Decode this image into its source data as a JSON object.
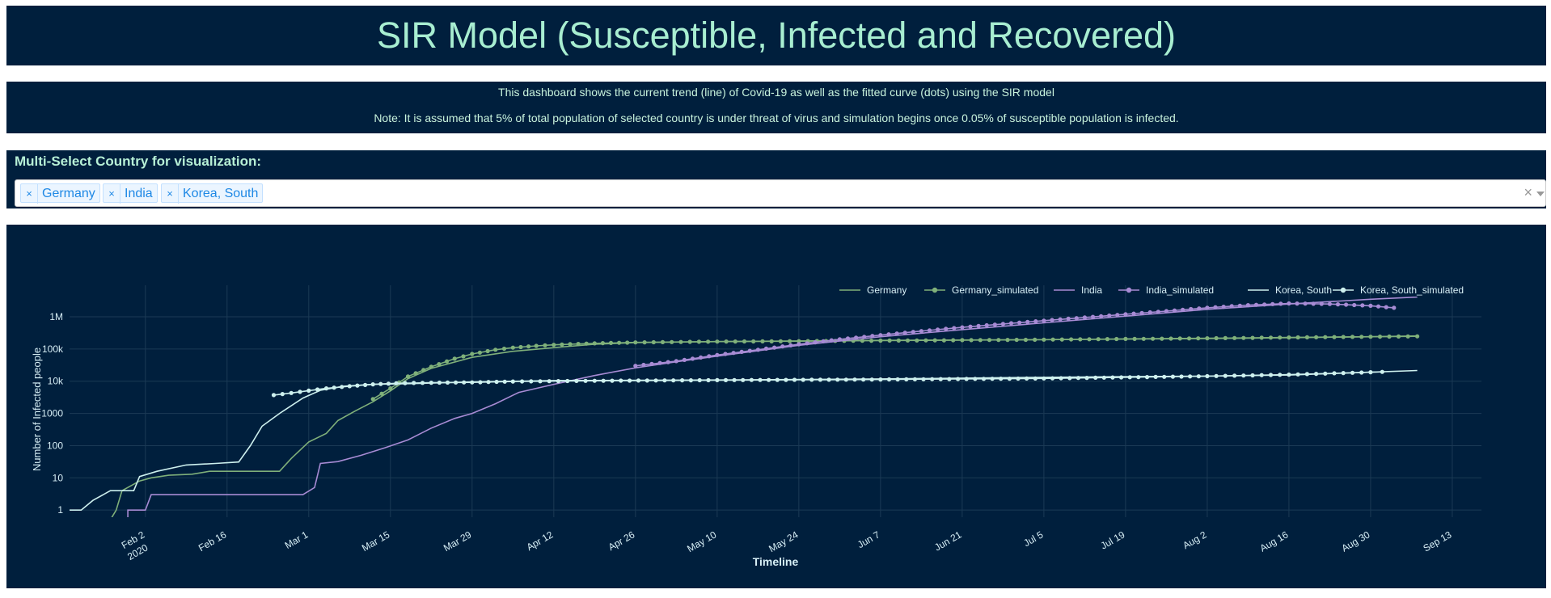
{
  "header": {
    "title": "SIR Model (Susceptible, Infected and Recovered)"
  },
  "description": {
    "line1": "This dashboard shows the current trend (line) of Covid-19 as well as the fitted curve (dots) using the SIR model",
    "line2": "Note: It is assumed that 5% of total population of selected country is under threat of virus and simulation begins once 0.05% of susceptible population is infected."
  },
  "selector": {
    "label": "Multi-Select Country for visualization:",
    "chips": [
      "Germany",
      "India",
      "Korea, South"
    ],
    "remove_glyph": "×",
    "clear_glyph": "×"
  },
  "chart_data": {
    "type": "line",
    "xlabel": "Timeline",
    "ylabel": "Number of Infected people",
    "y_scale": "log",
    "ylim": [
      0.6,
      3000000
    ],
    "xlim": [
      "2020-01-20",
      "2020-09-18"
    ],
    "x_ticks": [
      "2020-02-02",
      "2020-02-16",
      "2020-03-01",
      "2020-03-15",
      "2020-03-29",
      "2020-04-12",
      "2020-04-26",
      "2020-05-10",
      "2020-05-24",
      "2020-06-07",
      "2020-06-21",
      "2020-07-05",
      "2020-07-19",
      "2020-08-02",
      "2020-08-16",
      "2020-08-30",
      "2020-09-13"
    ],
    "x_tick_labels": [
      "Feb 2",
      "Feb 16",
      "Mar 1",
      "Mar 15",
      "Mar 29",
      "Apr 12",
      "Apr 26",
      "May 10",
      "May 24",
      "Jun 7",
      "Jun 21",
      "Jul 5",
      "Jul 19",
      "Aug 2",
      "Aug 16",
      "Aug 30",
      "Sep 13"
    ],
    "x_tick_sublabel": "2020",
    "y_ticks": [
      1,
      10,
      100,
      1000,
      10000,
      100000,
      1000000
    ],
    "y_tick_labels": [
      "1",
      "10",
      "100",
      "1000",
      "10k",
      "100k",
      "1M"
    ],
    "grid": true,
    "legend_position": "top-right",
    "series": [
      {
        "name": "Germany",
        "mode": "line",
        "color": "#7fb07a",
        "points": [
          [
            "2020-01-27",
            0.5
          ],
          [
            "2020-01-28",
            1
          ],
          [
            "2020-01-29",
            4
          ],
          [
            "2020-02-01",
            8
          ],
          [
            "2020-02-03",
            10
          ],
          [
            "2020-02-06",
            12
          ],
          [
            "2020-02-10",
            13
          ],
          [
            "2020-02-13",
            16
          ],
          [
            "2020-02-25",
            16
          ],
          [
            "2020-02-27",
            40
          ],
          [
            "2020-03-01",
            130
          ],
          [
            "2020-03-04",
            240
          ],
          [
            "2020-03-06",
            600
          ],
          [
            "2020-03-09",
            1200
          ],
          [
            "2020-03-12",
            2300
          ],
          [
            "2020-03-15",
            5000
          ],
          [
            "2020-03-18",
            12000
          ],
          [
            "2020-03-22",
            25000
          ],
          [
            "2020-03-29",
            55000
          ],
          [
            "2020-04-05",
            85000
          ],
          [
            "2020-04-12",
            110000
          ],
          [
            "2020-04-19",
            140000
          ],
          [
            "2020-04-26",
            158000
          ],
          [
            "2020-05-10",
            170000
          ],
          [
            "2020-06-07",
            185000
          ],
          [
            "2020-07-05",
            195000
          ],
          [
            "2020-08-02",
            210000
          ],
          [
            "2020-08-30",
            240000
          ],
          [
            "2020-09-07",
            255000
          ]
        ]
      },
      {
        "name": "Germany_simulated",
        "mode": "dots",
        "color": "#7fb07a",
        "points": [
          [
            "2020-03-12",
            2800
          ],
          [
            "2020-03-15",
            6000
          ],
          [
            "2020-03-18",
            14000
          ],
          [
            "2020-03-22",
            28000
          ],
          [
            "2020-03-26",
            50000
          ],
          [
            "2020-03-29",
            70000
          ],
          [
            "2020-04-02",
            95000
          ],
          [
            "2020-04-05",
            110000
          ],
          [
            "2020-04-09",
            125000
          ],
          [
            "2020-04-12",
            135000
          ],
          [
            "2020-04-19",
            150000
          ],
          [
            "2020-04-26",
            160000
          ],
          [
            "2020-05-10",
            170000
          ],
          [
            "2020-05-24",
            175000
          ],
          [
            "2020-06-07",
            182000
          ],
          [
            "2020-06-21",
            188000
          ],
          [
            "2020-07-05",
            195000
          ],
          [
            "2020-07-19",
            205000
          ],
          [
            "2020-08-02",
            215000
          ],
          [
            "2020-08-16",
            228000
          ],
          [
            "2020-08-30",
            240000
          ],
          [
            "2020-09-07",
            248000
          ]
        ]
      },
      {
        "name": "India",
        "mode": "line",
        "color": "#a78bd4",
        "points": [
          [
            "2020-01-30",
            0.5
          ],
          [
            "2020-01-30",
            1
          ],
          [
            "2020-02-02",
            1
          ],
          [
            "2020-02-03",
            3
          ],
          [
            "2020-02-06",
            3
          ],
          [
            "2020-02-29",
            3
          ],
          [
            "2020-03-02",
            5
          ],
          [
            "2020-03-03",
            28
          ],
          [
            "2020-03-06",
            32
          ],
          [
            "2020-03-10",
            50
          ],
          [
            "2020-03-14",
            85
          ],
          [
            "2020-03-18",
            150
          ],
          [
            "2020-03-22",
            350
          ],
          [
            "2020-03-26",
            700
          ],
          [
            "2020-03-29",
            1000
          ],
          [
            "2020-04-02",
            2000
          ],
          [
            "2020-04-06",
            4500
          ],
          [
            "2020-04-12",
            8000
          ],
          [
            "2020-04-19",
            15000
          ],
          [
            "2020-04-26",
            26000
          ],
          [
            "2020-05-03",
            40000
          ],
          [
            "2020-05-10",
            60000
          ],
          [
            "2020-05-24",
            130000
          ],
          [
            "2020-06-07",
            240000
          ],
          [
            "2020-06-21",
            400000
          ],
          [
            "2020-07-05",
            650000
          ],
          [
            "2020-07-19",
            1050000
          ],
          [
            "2020-08-02",
            1700000
          ],
          [
            "2020-08-16",
            2500000
          ],
          [
            "2020-08-30",
            3500000
          ],
          [
            "2020-09-07",
            4100000
          ]
        ]
      },
      {
        "name": "India_simulated",
        "mode": "dots",
        "color": "#a78bd4",
        "points": [
          [
            "2020-04-26",
            30000
          ],
          [
            "2020-05-03",
            42000
          ],
          [
            "2020-05-10",
            65000
          ],
          [
            "2020-05-17",
            95000
          ],
          [
            "2020-05-24",
            140000
          ],
          [
            "2020-05-31",
            200000
          ],
          [
            "2020-06-07",
            270000
          ],
          [
            "2020-06-14",
            360000
          ],
          [
            "2020-06-21",
            470000
          ],
          [
            "2020-06-28",
            600000
          ],
          [
            "2020-07-05",
            760000
          ],
          [
            "2020-07-12",
            950000
          ],
          [
            "2020-07-19",
            1200000
          ],
          [
            "2020-07-26",
            1500000
          ],
          [
            "2020-08-02",
            1900000
          ],
          [
            "2020-08-09",
            2300000
          ],
          [
            "2020-08-16",
            2600000
          ],
          [
            "2020-08-23",
            2500000
          ],
          [
            "2020-08-30",
            2200000
          ],
          [
            "2020-09-03",
            1900000
          ]
        ]
      },
      {
        "name": "Korea, South",
        "mode": "line",
        "color": "#cdf0ee",
        "points": [
          [
            "2020-01-20",
            1
          ],
          [
            "2020-01-22",
            1
          ],
          [
            "2020-01-24",
            2
          ],
          [
            "2020-01-27",
            4
          ],
          [
            "2020-01-31",
            4
          ],
          [
            "2020-02-01",
            11
          ],
          [
            "2020-02-04",
            16
          ],
          [
            "2020-02-09",
            25
          ],
          [
            "2020-02-14",
            28
          ],
          [
            "2020-02-18",
            31
          ],
          [
            "2020-02-20",
            100
          ],
          [
            "2020-02-22",
            400
          ],
          [
            "2020-02-25",
            1000
          ],
          [
            "2020-02-29",
            3000
          ],
          [
            "2020-03-03",
            5200
          ],
          [
            "2020-03-07",
            7000
          ],
          [
            "2020-03-12",
            8000
          ],
          [
            "2020-03-20",
            8500
          ],
          [
            "2020-03-29",
            9500
          ],
          [
            "2020-04-12",
            10500
          ],
          [
            "2020-05-10",
            10900
          ],
          [
            "2020-06-07",
            11800
          ],
          [
            "2020-07-05",
            13200
          ],
          [
            "2020-08-02",
            14400
          ],
          [
            "2020-08-16",
            15500
          ],
          [
            "2020-08-30",
            19000
          ],
          [
            "2020-09-07",
            21500
          ]
        ]
      },
      {
        "name": "Korea, South_simulated",
        "mode": "dots",
        "color": "#cdf0ee",
        "points": [
          [
            "2020-02-24",
            3700
          ],
          [
            "2020-02-27",
            4300
          ],
          [
            "2020-03-01",
            5100
          ],
          [
            "2020-03-04",
            6000
          ],
          [
            "2020-03-08",
            7000
          ],
          [
            "2020-03-12",
            8000
          ],
          [
            "2020-03-16",
            8600
          ],
          [
            "2020-03-22",
            9000
          ],
          [
            "2020-03-29",
            9200
          ],
          [
            "2020-04-05",
            9800
          ],
          [
            "2020-04-19",
            10300
          ],
          [
            "2020-05-10",
            10800
          ],
          [
            "2020-06-07",
            11300
          ],
          [
            "2020-07-05",
            12200
          ],
          [
            "2020-08-02",
            14300
          ],
          [
            "2020-08-16",
            16000
          ],
          [
            "2020-08-30",
            19000
          ],
          [
            "2020-09-01",
            19500
          ]
        ]
      }
    ]
  }
}
